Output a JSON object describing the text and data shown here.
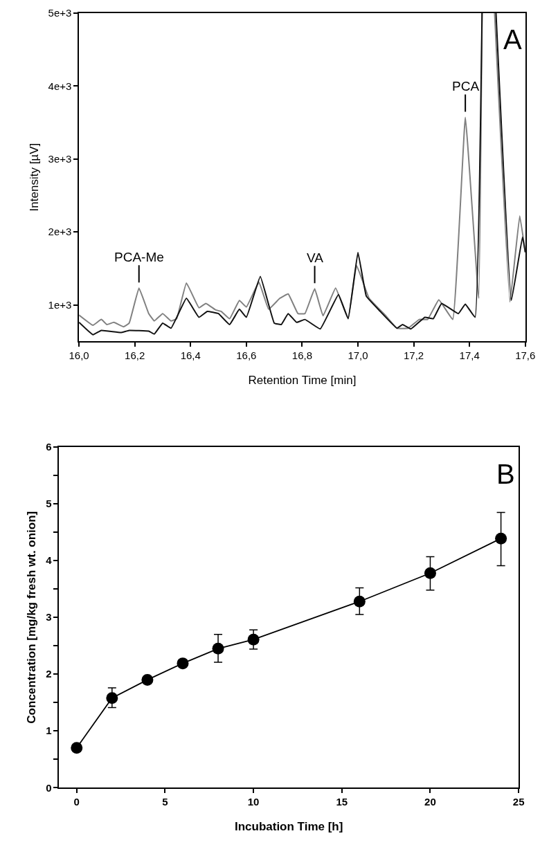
{
  "chart_data": [
    {
      "type": "line",
      "xlabel": "Retention Time [min]",
      "ylabel": "Intensity [µV]",
      "xlim": [
        16.0,
        17.6
      ],
      "ylim": [
        500,
        5000
      ],
      "xticks": [
        {
          "value": 16.0,
          "label": "16,0"
        },
        {
          "value": 16.2,
          "label": "16,2"
        },
        {
          "value": 16.4,
          "label": "16,4"
        },
        {
          "value": 16.6,
          "label": "16,6"
        },
        {
          "value": 16.8,
          "label": "16,8"
        },
        {
          "value": 17.0,
          "label": "17,0"
        },
        {
          "value": 17.2,
          "label": "17,2"
        },
        {
          "value": 17.4,
          "label": "17,4"
        },
        {
          "value": 17.6,
          "label": "17,6"
        }
      ],
      "yticks": [
        {
          "value": 1000,
          "label": "1e+3"
        },
        {
          "value": 2000,
          "label": "2e+3"
        },
        {
          "value": 3000,
          "label": "3e+3"
        },
        {
          "value": 4000,
          "label": "4e+3"
        },
        {
          "value": 5000,
          "label": "5e+3"
        }
      ],
      "marker": "none",
      "line_style": "solid",
      "series": [
        {
          "color": "#808080",
          "x": [
            16.0,
            16.05,
            16.08,
            16.1,
            16.125,
            16.16,
            16.18,
            16.215,
            16.25,
            16.27,
            16.3,
            16.33,
            16.35,
            16.385,
            16.43,
            16.455,
            16.49,
            16.51,
            16.54,
            16.575,
            16.6,
            16.645,
            16.68,
            16.72,
            16.75,
            16.785,
            16.81,
            16.845,
            16.875,
            16.92,
            16.965,
            16.995,
            17.04,
            17.1,
            17.14,
            17.18,
            17.22,
            17.25,
            17.29,
            17.34,
            17.385,
            17.433,
            17.445,
            17.47,
            17.49,
            17.545,
            17.58,
            17.6
          ],
          "values": [
            860,
            720,
            800,
            730,
            760,
            700,
            750,
            1230,
            880,
            780,
            880,
            780,
            810,
            1300,
            960,
            1020,
            930,
            910,
            810,
            1060,
            970,
            1310,
            940,
            1090,
            1150,
            880,
            880,
            1220,
            850,
            1230,
            810,
            1540,
            1090,
            850,
            680,
            680,
            800,
            800,
            1070,
            800,
            3570,
            1090,
            5000,
            null,
            5000,
            1040,
            2220,
            1720
          ]
        },
        {
          "color": "#111111",
          "x": [
            16.0,
            16.05,
            16.08,
            16.15,
            16.18,
            16.25,
            16.27,
            16.3,
            16.33,
            16.385,
            16.43,
            16.46,
            16.5,
            16.54,
            16.575,
            16.6,
            16.65,
            16.7,
            16.725,
            16.75,
            16.78,
            16.81,
            16.865,
            16.93,
            16.965,
            17.0,
            17.03,
            17.08,
            17.14,
            17.16,
            17.19,
            17.24,
            17.27,
            17.3,
            17.36,
            17.385,
            17.42,
            17.445,
            17.47,
            17.495,
            17.55,
            17.59,
            17.6
          ],
          "values": [
            760,
            590,
            650,
            620,
            650,
            640,
            600,
            750,
            680,
            1090,
            830,
            910,
            880,
            730,
            940,
            830,
            1390,
            750,
            730,
            880,
            760,
            800,
            670,
            1140,
            810,
            1720,
            1120,
            910,
            680,
            730,
            670,
            830,
            810,
            1020,
            880,
            1010,
            830,
            5000,
            null,
            5000,
            1060,
            1930,
            1720
          ]
        }
      ],
      "annotations": [
        {
          "text": "PCA-Me",
          "x": 16.215,
          "y": 1230
        },
        {
          "text": "VA",
          "x": 16.845,
          "y": 1220
        },
        {
          "text": "PCA",
          "x": 17.385,
          "y": 3570
        },
        "A"
      ]
    },
    {
      "type": "line",
      "xlabel": "Incubation Time [h]",
      "ylabel": "Concentration [mg/kg fresh wt. onion]",
      "xlim": [
        -1,
        25
      ],
      "ylim": [
        0,
        6
      ],
      "xticks": [
        0,
        5,
        10,
        15,
        20,
        25
      ],
      "yticks": [
        0,
        {
          "value": 0.5,
          "label": null
        },
        1,
        {
          "value": 1.5,
          "label": null
        },
        2,
        {
          "value": 2.5,
          "label": null
        },
        3,
        {
          "value": 3.5,
          "label": null
        },
        4,
        {
          "value": 4.5,
          "label": null
        },
        5,
        {
          "value": 5.5,
          "label": null
        },
        6
      ],
      "marker": "circle",
      "line_style": "solid",
      "series": [
        {
          "color": "#000000",
          "x": [
            0,
            2,
            4,
            6,
            8,
            10,
            16,
            20,
            24
          ],
          "values": [
            0.7,
            1.58,
            1.9,
            2.19,
            2.45,
            2.61,
            3.28,
            3.78,
            4.39
          ],
          "errors": [
            null,
            [
              1.41,
              1.76
            ],
            null,
            null,
            [
              2.21,
              2.7
            ],
            [
              2.44,
              2.78
            ],
            [
              3.05,
              3.52
            ],
            [
              3.48,
              4.07
            ],
            [
              3.91,
              4.85
            ]
          ]
        }
      ],
      "annotations": [
        "B"
      ]
    }
  ]
}
